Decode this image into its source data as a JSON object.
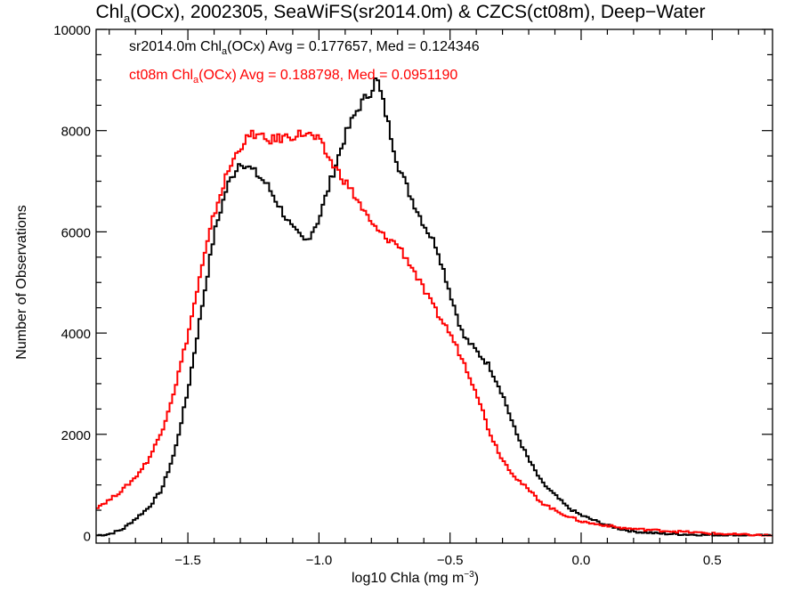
{
  "chart_data": {
    "type": "line",
    "title": {
      "pre": "Chl",
      "sub": "a",
      "post": "(OCx), 2002305, SeaWiFS(sr2014.0m) & CZCS(ct08m), Deep−Water"
    },
    "xlabel": {
      "pre": "log10 Chla (mg m",
      "sup": "−3",
      "post": ")"
    },
    "ylabel": "Number of Observations",
    "xlim": [
      -1.85,
      0.73
    ],
    "ylim": [
      -150,
      10000
    ],
    "xticks": [
      -1.5,
      -1.0,
      -0.5,
      0.0,
      0.5
    ],
    "xticklabels": [
      "−1.5",
      "−1.0",
      "−0.5",
      "0.0",
      "0.5"
    ],
    "yticks": [
      0,
      2000,
      4000,
      6000,
      8000,
      10000
    ],
    "yticklabels": [
      "0",
      "2000",
      "4000",
      "6000",
      "8000",
      "10000"
    ],
    "grid": false,
    "legend_position": "top-left",
    "series": [
      {
        "name": "sr2014.0m",
        "color": "#000000",
        "legend": {
          "pre": "sr2014.0m Chl",
          "sub": "a",
          "post": "(OCx) Avg = 0.177657, Med = 0.124346"
        },
        "x": [
          -1.85,
          -1.8,
          -1.75,
          -1.7,
          -1.65,
          -1.6,
          -1.55,
          -1.5,
          -1.45,
          -1.4,
          -1.35,
          -1.3,
          -1.25,
          -1.2,
          -1.15,
          -1.1,
          -1.05,
          -1.0,
          -0.95,
          -0.9,
          -0.85,
          -0.8,
          -0.78,
          -0.75,
          -0.7,
          -0.65,
          -0.6,
          -0.55,
          -0.5,
          -0.45,
          -0.4,
          -0.35,
          -0.3,
          -0.25,
          -0.2,
          -0.15,
          -0.1,
          -0.05,
          0.0,
          0.05,
          0.1,
          0.15,
          0.2,
          0.3,
          0.4,
          0.5,
          0.6,
          0.73
        ],
        "y": [
          0,
          30,
          120,
          330,
          550,
          900,
          1650,
          2850,
          4400,
          5950,
          6900,
          7400,
          7200,
          6950,
          6500,
          6050,
          5800,
          6250,
          7100,
          7900,
          8450,
          8800,
          9050,
          8450,
          7350,
          6700,
          6150,
          5700,
          4800,
          3950,
          3650,
          3350,
          2800,
          2050,
          1500,
          1050,
          800,
          550,
          400,
          300,
          200,
          130,
          80,
          40,
          20,
          10,
          5,
          0
        ]
      },
      {
        "name": "ct08m",
        "color": "#ff0000",
        "legend": {
          "pre": "ct08m Chl",
          "sub": "a",
          "post": "(OCx) Avg = 0.188798, Med = 0.0951190"
        },
        "x": [
          -1.85,
          -1.8,
          -1.75,
          -1.7,
          -1.65,
          -1.6,
          -1.55,
          -1.5,
          -1.45,
          -1.4,
          -1.35,
          -1.3,
          -1.25,
          -1.2,
          -1.15,
          -1.1,
          -1.05,
          -1.0,
          -0.95,
          -0.9,
          -0.85,
          -0.8,
          -0.75,
          -0.7,
          -0.65,
          -0.6,
          -0.55,
          -0.5,
          -0.45,
          -0.4,
          -0.35,
          -0.3,
          -0.25,
          -0.2,
          -0.15,
          -0.1,
          -0.05,
          0.0,
          0.05,
          0.1,
          0.15,
          0.2,
          0.3,
          0.4,
          0.5,
          0.6,
          0.73
        ],
        "y": [
          550,
          700,
          900,
          1150,
          1500,
          2050,
          2900,
          3950,
          5200,
          6350,
          7150,
          7700,
          7950,
          7800,
          7850,
          7900,
          7950,
          7800,
          7350,
          7000,
          6600,
          6150,
          5900,
          5750,
          5350,
          4850,
          4400,
          4000,
          3450,
          2850,
          2050,
          1500,
          1150,
          900,
          650,
          500,
          380,
          280,
          230,
          200,
          150,
          130,
          100,
          70,
          40,
          20,
          0
        ]
      }
    ]
  }
}
